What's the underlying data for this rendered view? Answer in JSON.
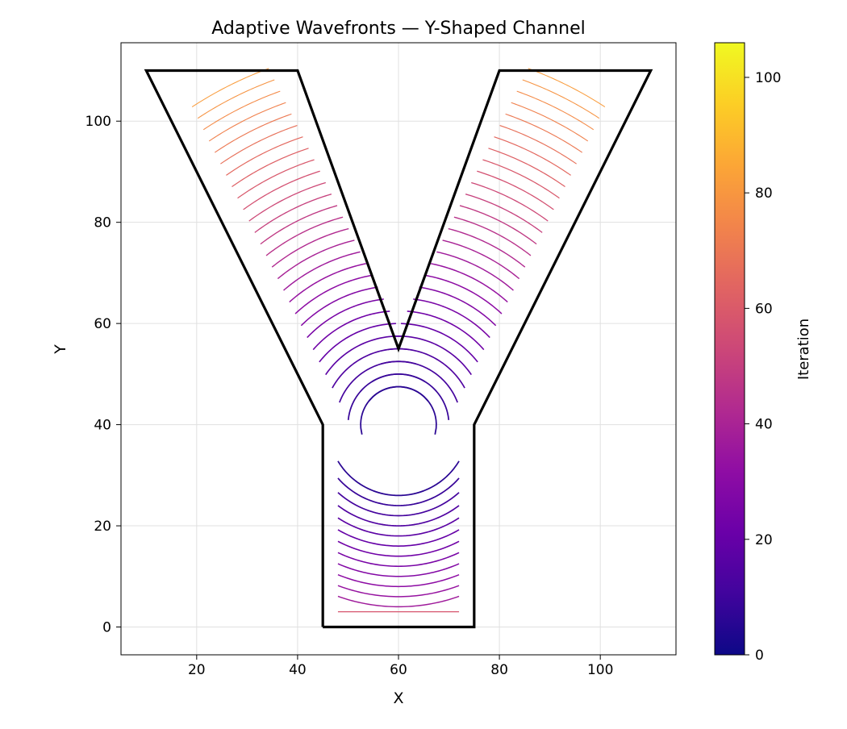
{
  "chart_data": {
    "type": "line",
    "title": "Adaptive Wavefronts — Y-Shaped Channel",
    "xlabel": "X",
    "ylabel": "Y",
    "xlim": [
      5,
      115
    ],
    "ylim": [
      -5.5,
      115.5
    ],
    "xticks": [
      20,
      40,
      60,
      80,
      100
    ],
    "yticks": [
      0,
      20,
      40,
      60,
      80,
      100
    ],
    "grid": true,
    "colormap": "plasma",
    "colorbar": {
      "label": "Iteration",
      "range": [
        0,
        106
      ],
      "ticks": [
        0,
        20,
        40,
        60,
        80,
        100
      ]
    },
    "boundary": {
      "color": "#000000",
      "points": [
        [
          45,
          0
        ],
        [
          75,
          0
        ],
        [
          75,
          40
        ],
        [
          110,
          110
        ],
        [
          80,
          110
        ],
        [
          60,
          55
        ],
        [
          40,
          110
        ],
        [
          10,
          110
        ],
        [
          45,
          40
        ],
        [
          45,
          0
        ]
      ]
    },
    "wavefronts": {
      "stem": {
        "center": [
          60,
          40
        ],
        "x_half_width": 12,
        "start_radius": 14,
        "radius_step": 2,
        "first_iteration": 6,
        "iteration_step": 2.8,
        "count": 12,
        "bottom_line": {
          "y": 3,
          "iteration": 58
        }
      },
      "left_branch": {
        "origin": [
          60,
          40
        ],
        "direction": [
          -0.447,
          0.894
        ],
        "half_width": 8.5,
        "start_radius": 7.5,
        "radius_step": 2.5,
        "first_iteration": 6,
        "iteration_step": 2.8,
        "count": 28
      },
      "right_branch": {
        "origin": [
          60,
          40
        ],
        "direction": [
          0.447,
          0.894
        ],
        "half_width": 8.5,
        "start_radius": 7.5,
        "radius_step": 2.5,
        "first_iteration": 6,
        "iteration_step": 2.8,
        "count": 28
      }
    }
  }
}
